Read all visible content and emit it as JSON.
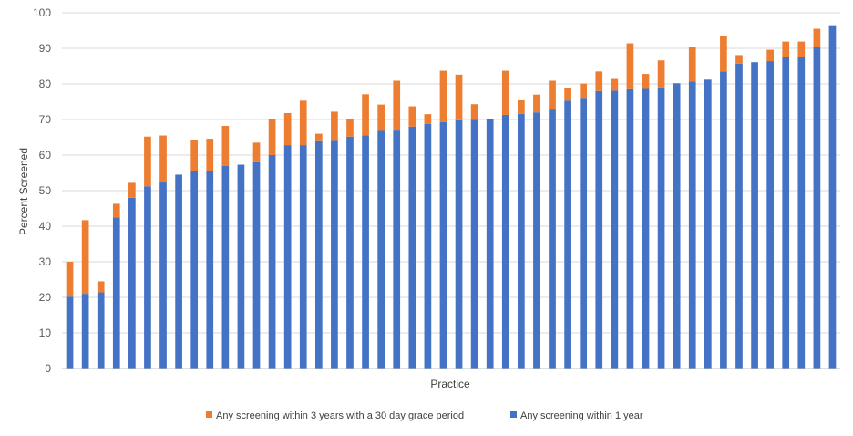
{
  "chart_data": {
    "type": "bar",
    "stacked": true,
    "title": "",
    "xlabel": "Practice",
    "ylabel": "Percent Screened",
    "ylim": [
      0,
      100
    ],
    "yticks": [
      0,
      10,
      20,
      30,
      40,
      50,
      60,
      70,
      80,
      90,
      100
    ],
    "grid": true,
    "legend_position": "bottom",
    "legend": [
      {
        "name": "Any screening within 3 years with a 30 day grace period",
        "color": "#ED7D31"
      },
      {
        "name": "Any screening within 1 year",
        "color": "#4472C4"
      }
    ],
    "series": [
      {
        "name": "Any screening within 1 year",
        "color": "#4472C4",
        "values": [
          20.2,
          21,
          21.4,
          42.5,
          48,
          51.2,
          52.3,
          54.5,
          55.5,
          55.6,
          57,
          57.3,
          58,
          60,
          62.8,
          62.8,
          63.9,
          64,
          65.2,
          65.5,
          66.8,
          66.9,
          68,
          68.8,
          69.3,
          69.8,
          69.9,
          70,
          71.3,
          71.6,
          72,
          72.8,
          75.3,
          76.1,
          78,
          78.1,
          78.5,
          78.6,
          79,
          80.2,
          80.7,
          81.2,
          83.5,
          85.7,
          86.1,
          86.4,
          87.5,
          87.6,
          90.5,
          96.5
        ]
      },
      {
        "name": "Any screening within 3 years with a 30 day grace period",
        "color": "#ED7D31",
        "values": [
          9.8,
          20.7,
          3.1,
          3.8,
          4.2,
          14,
          13.2,
          0,
          8.6,
          9,
          11.2,
          0,
          5.5,
          10,
          9,
          12.5,
          2.1,
          8.2,
          5,
          11.6,
          7.4,
          14,
          5.7,
          2.7,
          14.4,
          12.8,
          4.4,
          0,
          12.4,
          3.8,
          5,
          8.1,
          3.5,
          4,
          5.5,
          3.3,
          12.9,
          4.2,
          7.6,
          0,
          9.8,
          0,
          10,
          2.4,
          0,
          3.2,
          4.4,
          4.3,
          5,
          0
        ]
      }
    ]
  }
}
